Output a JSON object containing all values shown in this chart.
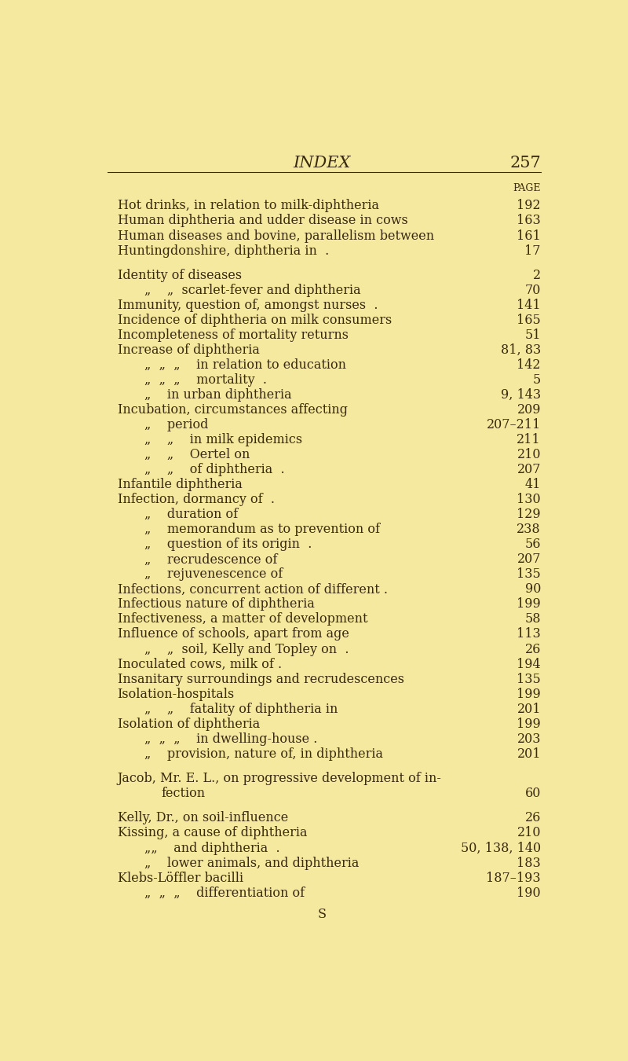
{
  "background_color": "#f5e9a0",
  "page_title": "INDEX",
  "page_number": "257",
  "page_label": "PAGE",
  "title_fontsize": 15,
  "body_fontsize": 11.5,
  "text_color": "#3a2a10",
  "entries": [
    {
      "indent": 0,
      "text": "Hot drinks, in relation to milk-diphtheria",
      "page": "192"
    },
    {
      "indent": 0,
      "text": "Human diphtheria and udder disease in cows",
      "page": "163"
    },
    {
      "indent": 0,
      "text": "Human diseases and bovine, parallelism between",
      "page": "161"
    },
    {
      "indent": 0,
      "text": "Huntingdonshire, diphtheria in  .",
      "page": "17"
    },
    {
      "indent": -1,
      "text": "",
      "page": ""
    },
    {
      "indent": 0,
      "text": "Identity of diseases",
      "page": "2",
      "small_caps": true
    },
    {
      "indent": 1,
      "text": "„    „  scarlet-fever and diphtheria",
      "page": "70"
    },
    {
      "indent": 0,
      "text": "Immunity, question of, amongst nurses  .",
      "page": "141"
    },
    {
      "indent": 0,
      "text": "Incidence of diphtheria on milk consumers",
      "page": "165"
    },
    {
      "indent": 0,
      "text": "Incompleteness of mortality returns",
      "page": "51"
    },
    {
      "indent": 0,
      "text": "Increase of diphtheria",
      "page": "81, 83"
    },
    {
      "indent": 1,
      "text": "„  „  „    in relation to education",
      "page": "142"
    },
    {
      "indent": 1,
      "text": "„  „  „    mortality  .",
      "page": "5"
    },
    {
      "indent": 1,
      "text": "„    in urban diphtheria",
      "page": "9, 143"
    },
    {
      "indent": 0,
      "text": "Incubation, circumstances affecting",
      "page": "209"
    },
    {
      "indent": 1,
      "text": "„    period",
      "page": "207–211"
    },
    {
      "indent": 1,
      "text": "„    „    in milk epidemics",
      "page": "211"
    },
    {
      "indent": 1,
      "text": "„    „    Oertel on",
      "page": "210"
    },
    {
      "indent": 1,
      "text": "„    „    of diphtheria  .",
      "page": "207"
    },
    {
      "indent": 0,
      "text": "Infantile diphtheria",
      "page": "41"
    },
    {
      "indent": 0,
      "text": "Infection, dormancy of  .",
      "page": "130"
    },
    {
      "indent": 1,
      "text": "„    duration of",
      "page": "129"
    },
    {
      "indent": 1,
      "text": "„    memorandum as to prevention of",
      "page": "238"
    },
    {
      "indent": 1,
      "text": "„    question of its origin  .",
      "page": "56"
    },
    {
      "indent": 1,
      "text": "„    recrudescence of",
      "page": "207"
    },
    {
      "indent": 1,
      "text": "„    rejuvenescence of",
      "page": "135"
    },
    {
      "indent": 0,
      "text": "Infections, concurrent action of different .",
      "page": "90"
    },
    {
      "indent": 0,
      "text": "Infectious nature of diphtheria",
      "page": "199"
    },
    {
      "indent": 0,
      "text": "Infectiveness, a matter of development",
      "page": "58"
    },
    {
      "indent": 0,
      "text": "Influence of schools, apart from age",
      "page": "113"
    },
    {
      "indent": 1,
      "text": "„    „  soil, Kelly and Topley on  .",
      "page": "26"
    },
    {
      "indent": 0,
      "text": "Inoculated cows, milk of .",
      "page": "194"
    },
    {
      "indent": 0,
      "text": "Insanitary surroundings and recrudescences",
      "page": "135"
    },
    {
      "indent": 0,
      "text": "Isolation-hospitals",
      "page": "199"
    },
    {
      "indent": 1,
      "text": "„    „    fatality of diphtheria in",
      "page": "201"
    },
    {
      "indent": 0,
      "text": "Isolation of diphtheria",
      "page": "199"
    },
    {
      "indent": 1,
      "text": "„  „  „    in dwelling-house .",
      "page": "203"
    },
    {
      "indent": 1,
      "text": "„    provision, nature of, in diphtheria",
      "page": "201"
    },
    {
      "indent": -1,
      "text": "",
      "page": ""
    },
    {
      "indent": 0,
      "text": "Jacob, Mr. E. L., on progressive development of in-",
      "page": "",
      "small_caps": true
    },
    {
      "indent": 2,
      "text": "fection",
      "page": "60"
    },
    {
      "indent": -1,
      "text": "",
      "page": ""
    },
    {
      "indent": 0,
      "text": "Kelly, Dr., on soil-influence",
      "page": "26",
      "small_caps": true
    },
    {
      "indent": 0,
      "text": "Kissing, a cause of diphtheria",
      "page": "210"
    },
    {
      "indent": 1,
      "text": "„„    and diphtheria  .",
      "page": "50, 138, 140"
    },
    {
      "indent": 1,
      "text": "„    lower animals, and diphtheria",
      "page": "183"
    },
    {
      "indent": 0,
      "text": "Klebs-Löffler bacilli",
      "page": "187–193"
    },
    {
      "indent": 1,
      "text": "„  „  „    differentiation of",
      "page": "190"
    }
  ],
  "footer": "S"
}
